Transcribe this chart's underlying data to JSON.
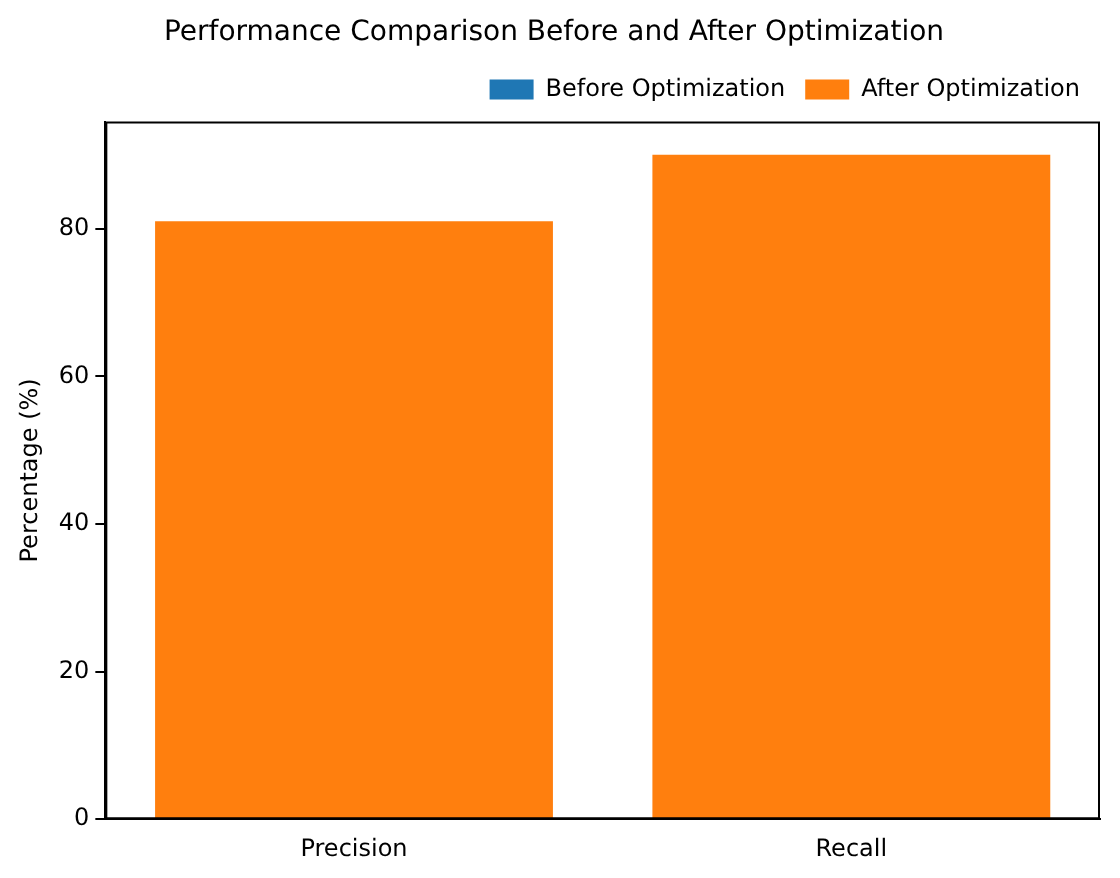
{
  "chart_data": {
    "type": "bar",
    "title": "Performance Comparison Before and After Optimization",
    "ylabel": "Percentage (%)",
    "categories": [
      "Precision",
      "Recall"
    ],
    "series": [
      {
        "name": "Before Optimization",
        "color": "#1f77b4",
        "values": [
          null,
          null
        ]
      },
      {
        "name": "After Optimization",
        "color": "#ff7f0e",
        "values": [
          81,
          90
        ]
      }
    ],
    "ylim": [
      0,
      94.5
    ],
    "yticks": [
      0,
      20,
      40,
      60,
      80
    ],
    "grid": false,
    "legend": "top right"
  }
}
